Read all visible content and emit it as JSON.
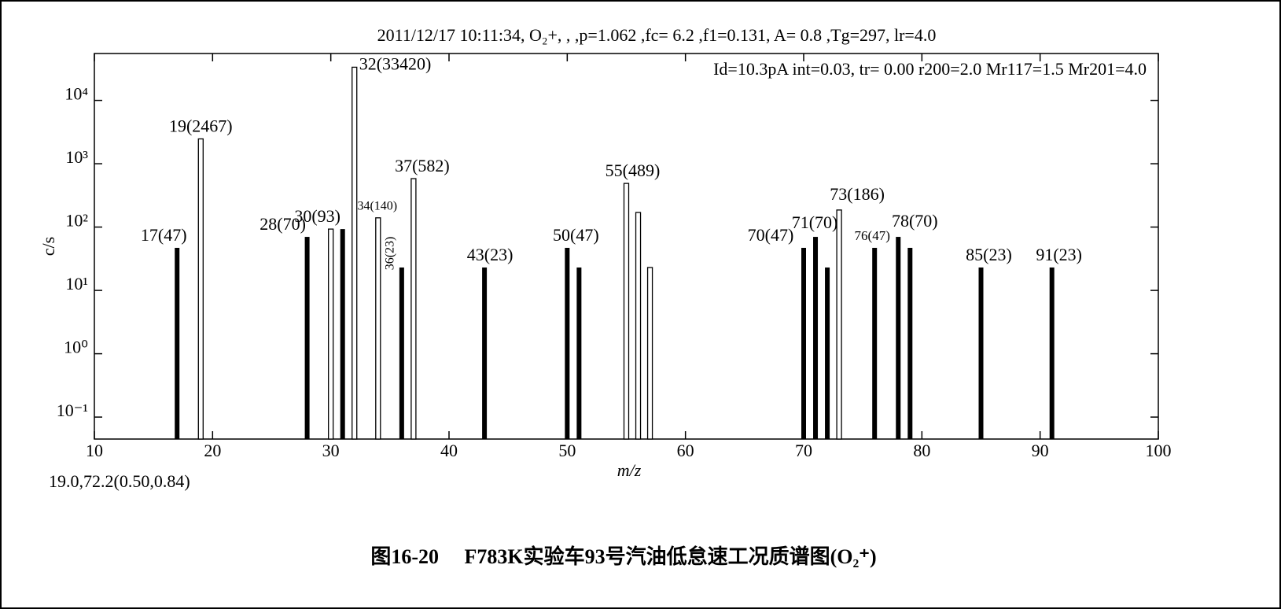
{
  "chart_data": {
    "type": "bar",
    "header": "2011/12/17 10:11:34, O₂+, , ,p=1.062 ,fc= 6.2 ,f1=0.131, A= 0.8 ,Tg=297, lr=4.0",
    "subheader": "Id=10.3pA int=0.03, tr= 0.00 r200=2.0 Mr117=1.5 Mr201=4.0",
    "note": "19.0,72.2(0.50,0.84)",
    "caption": "图16-20　 F783K实验车93号汽油低怠速工况质谱图(O₂⁺)",
    "xlabel": "m/z",
    "ylabel": "c/s",
    "x": [
      17,
      19,
      28,
      30,
      31,
      32,
      34,
      36,
      37,
      43,
      50,
      51,
      55,
      56,
      57,
      70,
      71,
      72,
      73,
      76,
      78,
      79,
      85,
      91
    ],
    "values": [
      47,
      2467,
      70,
      93,
      93,
      33420,
      140,
      23,
      582,
      23,
      47,
      23,
      489,
      170,
      23,
      47,
      70,
      23,
      186,
      47,
      70,
      47,
      23,
      23
    ],
    "value_labels": [
      "17(47)",
      "19(2467)",
      "28(70)",
      "30(93)",
      null,
      "32(33420)",
      "34(140)",
      "36(23)",
      "37(582)",
      "43(23)",
      "50(47)",
      null,
      "55(489)",
      null,
      null,
      "70(47)",
      "71(70)",
      null,
      "73(186)",
      "76(47)",
      "78(70)",
      null,
      "85(23)",
      "91(23)"
    ],
    "hollow": [
      false,
      true,
      false,
      true,
      false,
      true,
      true,
      false,
      true,
      false,
      false,
      false,
      true,
      true,
      true,
      false,
      false,
      false,
      true,
      false,
      false,
      false,
      false,
      false
    ],
    "color": "#000000",
    "log_y": true,
    "xlim": [
      10,
      100
    ],
    "xticks": [
      10,
      20,
      30,
      40,
      50,
      60,
      70,
      80,
      90,
      100
    ],
    "ylim": [
      0.045,
      55000
    ],
    "yticks": [
      {
        "value": 0.1,
        "label": "10⁻¹"
      },
      {
        "value": 1,
        "label": "10⁰"
      },
      {
        "value": 10,
        "label": "10¹"
      },
      {
        "value": 100,
        "label": "10²"
      },
      {
        "value": 1000,
        "label": "10³"
      },
      {
        "value": 10000,
        "label": "10⁴"
      }
    ]
  }
}
